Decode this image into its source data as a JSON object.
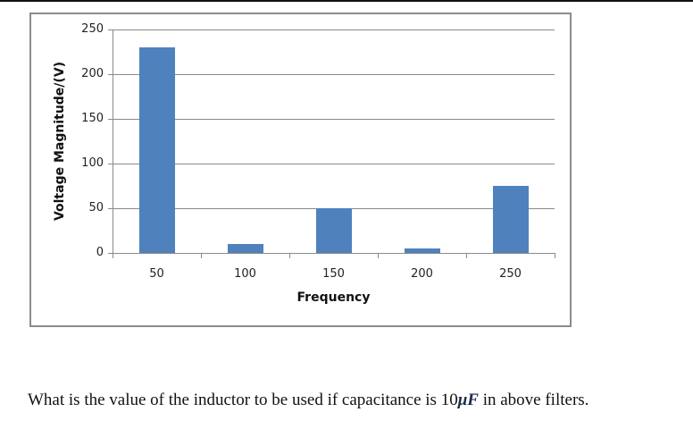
{
  "chart_data": {
    "type": "bar",
    "title": "",
    "xlabel": "Frequency",
    "ylabel": "Voltage Magnitude/(V)",
    "categories": [
      "50",
      "100",
      "150",
      "200",
      "250"
    ],
    "values": [
      230,
      10,
      50,
      5,
      75
    ],
    "ylim": [
      0,
      250
    ],
    "yticks": [
      "0",
      "50",
      "100",
      "150",
      "200",
      "250"
    ],
    "grid": true,
    "legend": "none",
    "bar_color": "#4f81bd"
  },
  "question": {
    "prefix": "What is the value of the inductor to be used if capacitance is 10",
    "unit": "μF",
    "suffix": " in above filters."
  }
}
